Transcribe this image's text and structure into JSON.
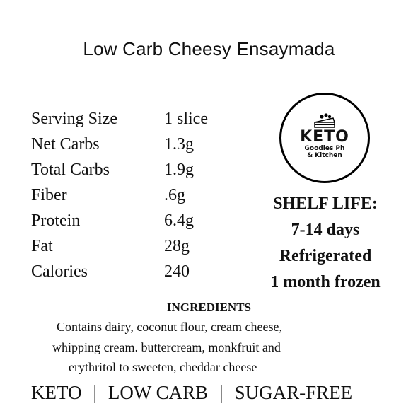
{
  "title": "Low Carb Cheesy Ensaymada",
  "nutrition": [
    {
      "label": "Serving Size",
      "value": "1 slice"
    },
    {
      "label": "Net Carbs",
      "value": "1.3g"
    },
    {
      "label": "Total Carbs",
      "value": "1.9g"
    },
    {
      "label": "Fiber",
      "value": ".6g"
    },
    {
      "label": "Protein",
      "value": "6.4g"
    },
    {
      "label": "Fat",
      "value": "28g"
    },
    {
      "label": "Calories",
      "value": "240"
    }
  ],
  "logo": {
    "brand": "KETO",
    "line1": "Goodies Ph",
    "line2": "& Kitchen",
    "icon": "cake-icon"
  },
  "shelf_life": {
    "heading": "SHELF LIFE:",
    "days": "7-14 days",
    "storage": "Refrigerated",
    "frozen": "1 month frozen"
  },
  "ingredients": {
    "heading": "INGREDIENTS",
    "lines": [
      "Contains dairy, coconut flour, cream cheese,",
      "whipping cream. buttercream, monkfruit and",
      "erythritol to sweeten, cheddar cheese"
    ]
  },
  "tags": [
    "KETO",
    "LOW CARB",
    "SUGAR-FREE"
  ],
  "separator": "|"
}
